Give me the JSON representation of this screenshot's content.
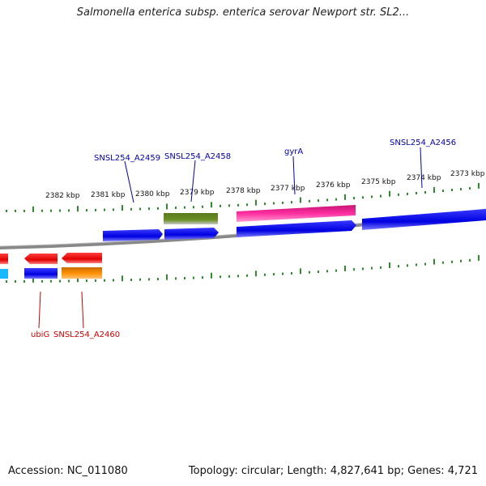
{
  "title": "Salmonella enterica subsp. enterica serovar Newport str. SL2...",
  "footer": {
    "accession": "Accession: NC_011080",
    "topology": "Topology: circular; Length: 4,827,641 bp; Genes: 4,721"
  },
  "ticks": [
    {
      "label": "2382 kbp"
    },
    {
      "label": "2381 kbp"
    },
    {
      "label": "2380 kbp"
    },
    {
      "label": "2379 kbp"
    },
    {
      "label": "2378 kbp"
    },
    {
      "label": "2377 kbp"
    },
    {
      "label": "2376 kbp"
    },
    {
      "label": "2375 kbp"
    },
    {
      "label": "2374 kbp"
    },
    {
      "label": "2373 kbp"
    }
  ],
  "gene_labels_top": [
    {
      "name": "SNSL254_A2459",
      "color": "#0000aa"
    },
    {
      "name": "SNSL254_A2458",
      "color": "#0000aa"
    },
    {
      "name": "gyrA",
      "color": "#0000aa"
    },
    {
      "name": "SNSL254_A2456",
      "color": "#0000aa"
    }
  ],
  "gene_labels_bottom": [
    {
      "name": "ubiG",
      "color": "#cc0000"
    },
    {
      "name": "SNSL254_A2460",
      "color": "#cc0000"
    }
  ],
  "colors": {
    "forward_cds": "#0000ee",
    "reverse_cds": "#ee0000",
    "rRNA_green": "#6b8e23",
    "gyrA_pink": "#ee1c8c",
    "orange": "#ff8c00",
    "cyan": "#00bfff",
    "tick": "#2e8b2e",
    "backbone": "#777777"
  }
}
